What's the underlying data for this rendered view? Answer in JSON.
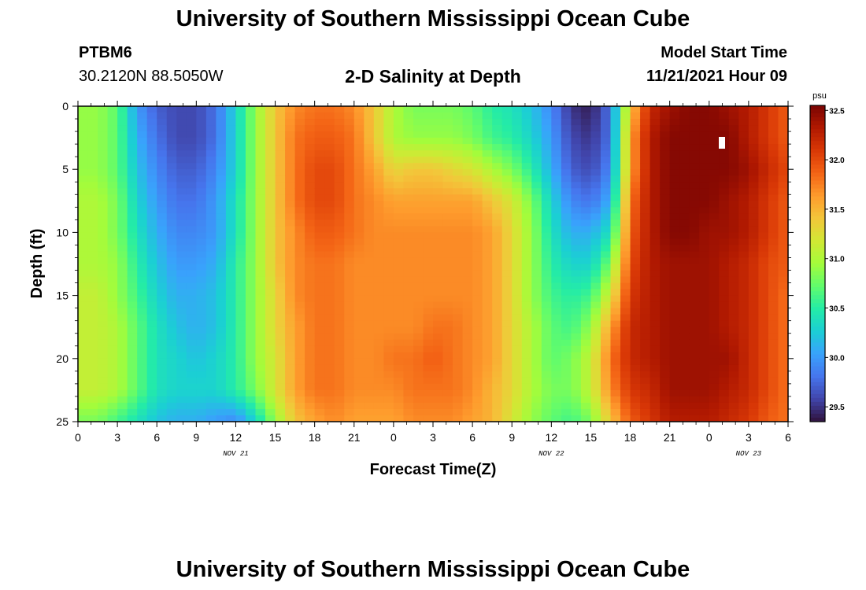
{
  "header": {
    "title": "University of Southern Mississippi Ocean Cube",
    "station_id": "PTBM6",
    "coordinates": "30.2120N  88.5050W",
    "subtitle": "2-D Salinity at Depth",
    "model_start_label": "Model Start Time",
    "model_start_value": "11/21/2021 Hour 09"
  },
  "footer": {
    "title": "University of Southern Mississippi Ocean Cube"
  },
  "chart_data": {
    "type": "heatmap",
    "title": "2-D Salinity at Depth",
    "xlabel": "Forecast Time(Z)",
    "ylabel": "Depth (ft)",
    "x_tick_labels": [
      "0",
      "3",
      "6",
      "9",
      "12",
      "15",
      "18",
      "21",
      "0",
      "3",
      "6",
      "9",
      "12",
      "15",
      "18",
      "21",
      "0",
      "3",
      "6"
    ],
    "x_date_labels": [
      "NOV 21",
      "NOV 22",
      "NOV 23"
    ],
    "y_tick_labels": [
      "0",
      "5",
      "10",
      "15",
      "20",
      "25"
    ],
    "ylim": [
      0,
      25
    ],
    "colorbar": {
      "unit": "psu",
      "tick_labels": [
        "29.5",
        "30.0",
        "30.5",
        "31.0",
        "31.5",
        "32.0",
        "32.5"
      ],
      "range": [
        29.35,
        32.55
      ],
      "colors": [
        "#30123b",
        "#4145ab",
        "#4675ed",
        "#39a2fc",
        "#1bcfd4",
        "#24eca6",
        "#61fc6c",
        "#a4fc3b",
        "#d1e834",
        "#f3c63a",
        "#fe9b2d",
        "#f36315",
        "#d93806",
        "#b11901",
        "#7a0403"
      ]
    },
    "x_range_hours": [
      0,
      54
    ],
    "depth_levels_ft": [
      0,
      2.5,
      5,
      7.5,
      10,
      12.5,
      15,
      17.5,
      20,
      22.5,
      25
    ],
    "columns": [
      {
        "hour": 0,
        "salinity": [
          30.9,
          30.9,
          30.9,
          31.0,
          31.0,
          31.0,
          31.1,
          31.1,
          31.1,
          31.1,
          30.8
        ]
      },
      {
        "hour": 1.5,
        "salinity": [
          30.9,
          30.9,
          30.9,
          31.0,
          31.0,
          31.0,
          31.1,
          31.1,
          31.1,
          31.1,
          30.8
        ]
      },
      {
        "hour": 3,
        "salinity": [
          30.7,
          30.7,
          30.7,
          30.8,
          30.8,
          30.9,
          30.9,
          31.0,
          31.0,
          31.0,
          30.6
        ]
      },
      {
        "hour": 4.5,
        "salinity": [
          30.0,
          30.1,
          30.2,
          30.3,
          30.4,
          30.5,
          30.6,
          30.7,
          30.7,
          30.7,
          30.4
        ]
      },
      {
        "hour": 6,
        "salinity": [
          29.7,
          29.8,
          29.9,
          30.0,
          30.1,
          30.2,
          30.3,
          30.4,
          30.4,
          30.4,
          30.2
        ]
      },
      {
        "hour": 7.5,
        "salinity": [
          29.6,
          29.6,
          29.7,
          29.8,
          29.9,
          30.0,
          30.1,
          30.2,
          30.3,
          30.3,
          30.1
        ]
      },
      {
        "hour": 9,
        "salinity": [
          29.6,
          29.6,
          29.7,
          29.8,
          29.9,
          30.0,
          30.1,
          30.1,
          30.2,
          30.3,
          30.1
        ]
      },
      {
        "hour": 10.5,
        "salinity": [
          29.8,
          29.8,
          29.9,
          30.0,
          30.0,
          30.1,
          30.2,
          30.2,
          30.3,
          30.3,
          30.0
        ]
      },
      {
        "hour": 12,
        "salinity": [
          30.3,
          30.3,
          30.3,
          30.4,
          30.4,
          30.5,
          30.5,
          30.5,
          30.5,
          30.5,
          29.9
        ]
      },
      {
        "hour": 13.5,
        "salinity": [
          30.9,
          30.9,
          30.9,
          30.9,
          30.9,
          30.9,
          30.9,
          30.9,
          30.9,
          30.8,
          30.3
        ]
      },
      {
        "hour": 15,
        "salinity": [
          31.4,
          31.4,
          31.4,
          31.4,
          31.4,
          31.4,
          31.3,
          31.3,
          31.2,
          31.2,
          30.9
        ]
      },
      {
        "hour": 16.5,
        "salinity": [
          31.7,
          31.8,
          31.8,
          31.8,
          31.7,
          31.7,
          31.7,
          31.6,
          31.6,
          31.6,
          31.4
        ]
      },
      {
        "hour": 18,
        "salinity": [
          31.8,
          31.9,
          32.0,
          32.0,
          31.9,
          31.8,
          31.8,
          31.8,
          31.8,
          31.8,
          31.6
        ]
      },
      {
        "hour": 19.5,
        "salinity": [
          31.8,
          31.9,
          32.0,
          32.0,
          31.9,
          31.8,
          31.8,
          31.8,
          31.8,
          31.8,
          31.7
        ]
      },
      {
        "hour": 21,
        "salinity": [
          31.7,
          31.8,
          31.8,
          31.8,
          31.8,
          31.7,
          31.7,
          31.7,
          31.7,
          31.7,
          31.6
        ]
      },
      {
        "hour": 22.5,
        "salinity": [
          31.4,
          31.4,
          31.6,
          31.7,
          31.7,
          31.7,
          31.7,
          31.7,
          31.7,
          31.7,
          31.6
        ]
      },
      {
        "hour": 24,
        "salinity": [
          31.0,
          31.0,
          31.3,
          31.6,
          31.7,
          31.7,
          31.7,
          31.7,
          31.8,
          31.7,
          31.6
        ]
      },
      {
        "hour": 25.5,
        "salinity": [
          30.8,
          30.9,
          31.4,
          31.6,
          31.7,
          31.7,
          31.7,
          31.7,
          31.8,
          31.8,
          31.7
        ]
      },
      {
        "hour": 27,
        "salinity": [
          30.8,
          30.9,
          31.4,
          31.6,
          31.7,
          31.7,
          31.7,
          31.8,
          31.9,
          31.8,
          31.7
        ]
      },
      {
        "hour": 28.5,
        "salinity": [
          30.8,
          30.9,
          31.3,
          31.6,
          31.7,
          31.7,
          31.7,
          31.8,
          31.8,
          31.8,
          31.7
        ]
      },
      {
        "hour": 30,
        "salinity": [
          30.7,
          30.8,
          31.2,
          31.6,
          31.7,
          31.7,
          31.7,
          31.7,
          31.7,
          31.7,
          31.6
        ]
      },
      {
        "hour": 31.5,
        "salinity": [
          30.5,
          30.6,
          31.0,
          31.4,
          31.6,
          31.6,
          31.6,
          31.6,
          31.6,
          31.5,
          31.5
        ]
      },
      {
        "hour": 33,
        "salinity": [
          30.4,
          30.5,
          30.8,
          31.2,
          31.3,
          31.3,
          31.3,
          31.3,
          31.3,
          31.3,
          31.2
        ]
      },
      {
        "hour": 34.5,
        "salinity": [
          30.2,
          30.3,
          30.5,
          30.8,
          30.9,
          30.9,
          30.9,
          31.0,
          31.0,
          31.0,
          30.9
        ]
      },
      {
        "hour": 36,
        "salinity": [
          29.9,
          30.0,
          30.1,
          30.3,
          30.4,
          30.5,
          30.6,
          30.7,
          30.7,
          30.8,
          30.7
        ]
      },
      {
        "hour": 37.5,
        "salinity": [
          29.5,
          29.6,
          29.7,
          29.9,
          30.1,
          30.3,
          30.5,
          30.6,
          30.8,
          30.8,
          30.6
        ]
      },
      {
        "hour": 39,
        "salinity": [
          29.4,
          29.5,
          29.6,
          29.8,
          30.1,
          30.3,
          30.6,
          30.9,
          31.1,
          31.1,
          30.8
        ]
      },
      {
        "hour": 40.5,
        "salinity": [
          29.8,
          29.8,
          29.9,
          30.1,
          30.4,
          30.8,
          31.2,
          31.6,
          31.8,
          31.7,
          31.4
        ]
      },
      {
        "hour": 42,
        "salinity": [
          31.4,
          31.6,
          31.6,
          31.8,
          31.9,
          32.0,
          32.1,
          32.2,
          32.2,
          32.1,
          31.9
        ]
      },
      {
        "hour": 43.5,
        "salinity": [
          32.2,
          32.3,
          32.3,
          32.3,
          32.3,
          32.3,
          32.3,
          32.3,
          32.3,
          32.2,
          32.1
        ]
      },
      {
        "hour": 45,
        "salinity": [
          32.4,
          32.5,
          32.5,
          32.5,
          32.5,
          32.4,
          32.4,
          32.4,
          32.4,
          32.4,
          32.3
        ]
      },
      {
        "hour": 46.5,
        "salinity": [
          32.5,
          32.5,
          32.5,
          32.5,
          32.5,
          32.4,
          32.4,
          32.4,
          32.4,
          32.4,
          32.3
        ]
      },
      {
        "hour": 48,
        "salinity": [
          32.5,
          32.5,
          32.5,
          32.5,
          32.4,
          32.4,
          32.4,
          32.4,
          32.4,
          32.4,
          32.3
        ]
      },
      {
        "hour": 49.5,
        "salinity": [
          32.4,
          32.5,
          32.5,
          32.4,
          32.4,
          32.3,
          32.3,
          32.3,
          32.4,
          32.3,
          32.2
        ]
      },
      {
        "hour": 51,
        "salinity": [
          32.3,
          32.3,
          32.4,
          32.3,
          32.3,
          32.2,
          32.2,
          32.2,
          32.2,
          32.2,
          32.1
        ]
      },
      {
        "hour": 52.5,
        "salinity": [
          32.1,
          32.1,
          32.2,
          32.1,
          32.1,
          32.0,
          32.0,
          32.0,
          32.0,
          32.0,
          31.9
        ]
      },
      {
        "hour": 54,
        "salinity": [
          31.9,
          31.9,
          32.0,
          31.9,
          31.9,
          31.9,
          31.8,
          31.8,
          31.8,
          31.8,
          31.8
        ]
      }
    ]
  }
}
